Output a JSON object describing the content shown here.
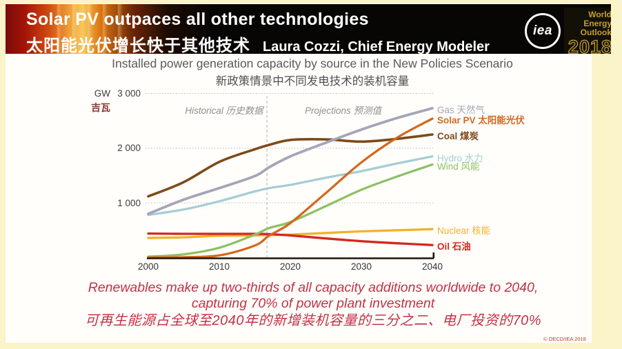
{
  "colors": {
    "page_bg": "#fbf4c9",
    "header_bg": "#070605",
    "weo_gold": "#c79f2d",
    "caption_red": "#c13245",
    "axis": "#221409",
    "gridline": "#bcbcbc"
  },
  "header": {
    "title_en": "Solar PV outpaces all other technologies",
    "title_zh": "太阳能光伏增长快于其他技术",
    "speaker": "Laura Cozzi, Chief Energy Modeler",
    "iea_logo_text": "iea",
    "weo_line1": "World",
    "weo_line2": "Energy",
    "weo_line3": "Outlook",
    "weo_year": "2018"
  },
  "chart": {
    "title": "Installed power generation capacity by source in the New Policies Scenario",
    "subtitle": "新政策情景中不同发电技术的装机容量",
    "unit_en": "GW",
    "unit_zh": "吉瓦",
    "historical_label": "Historical 历史数据",
    "projections_label": "Projections 预测值"
  },
  "chart_data": {
    "type": "line",
    "title": "Installed power generation capacity by source in the New Policies Scenario",
    "subtitle_zh": "新政策情景中不同发电技术的装机容量",
    "ylabel": "GW 吉瓦",
    "xlabel": "",
    "ylim": [
      0,
      3000
    ],
    "xlim": [
      2000,
      2040
    ],
    "grid": "horizontal-dotted",
    "legend_position": "right",
    "divider_year": 2017,
    "divider_labels": [
      "Historical 历史数据",
      "Projections 预测值"
    ],
    "x": [
      2000,
      2005,
      2010,
      2015,
      2017,
      2020,
      2025,
      2030,
      2035,
      2040
    ],
    "xticks": [
      2000,
      2010,
      2020,
      2030,
      2040
    ],
    "yticks": [
      {
        "value": 1000,
        "label": "1 000"
      },
      {
        "value": 2000,
        "label": "2 000"
      },
      {
        "value": 3000,
        "label": "3 000"
      }
    ],
    "series": [
      {
        "name": "Gas 天然气",
        "color": "#a5a4b8",
        "bold": false,
        "values": [
          800,
          1060,
          1270,
          1490,
          1650,
          1850,
          2100,
          2340,
          2550,
          2730
        ]
      },
      {
        "name": "Solar PV 太阳能光伏",
        "color": "#d2691f",
        "bold": true,
        "values": [
          2,
          8,
          40,
          220,
          400,
          630,
          1180,
          1740,
          2190,
          2540
        ]
      },
      {
        "name": "Coal 煤炭",
        "color": "#7d4a1a",
        "bold": true,
        "values": [
          1120,
          1380,
          1750,
          1980,
          2060,
          2150,
          2160,
          2120,
          2170,
          2250
        ]
      },
      {
        "name": "Hydro 水力",
        "color": "#a6cdd5",
        "bold": false,
        "values": [
          780,
          880,
          1030,
          1210,
          1270,
          1330,
          1460,
          1580,
          1720,
          1850
        ]
      },
      {
        "name": "Wind 风能",
        "color": "#8dc063",
        "bold": false,
        "values": [
          17,
          60,
          180,
          420,
          540,
          650,
          940,
          1240,
          1480,
          1700
        ]
      },
      {
        "name": "Nuclear 核能",
        "color": "#f2b229",
        "bold": false,
        "values": [
          360,
          370,
          400,
          405,
          413,
          420,
          450,
          480,
          500,
          520
        ]
      },
      {
        "name": "Oil 石油",
        "color": "#d3281f",
        "bold": true,
        "values": [
          440,
          435,
          435,
          435,
          430,
          405,
          350,
          300,
          262,
          230
        ]
      }
    ]
  },
  "caption": {
    "line1": "Renewables make up two-thirds of all capacity additions worldwide to 2040,",
    "line2": "capturing 70% of power plant investment",
    "line3": "可再生能源占全球至2040年的新增装机容量的三分之二、电厂投资的70%"
  },
  "footer": {
    "copyright": "© OECD/IEA 2018"
  }
}
